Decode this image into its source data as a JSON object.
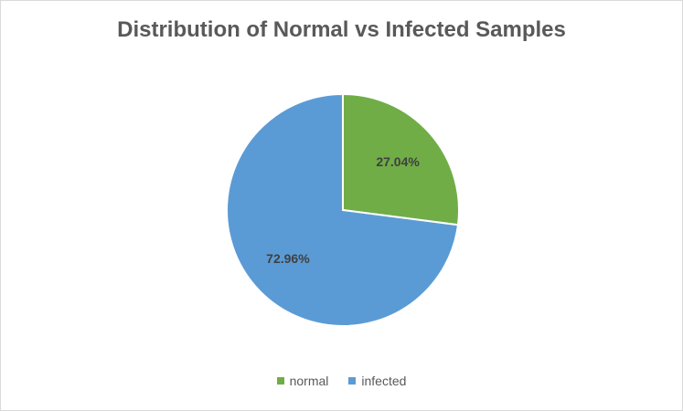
{
  "chart_data": {
    "type": "pie",
    "title": "Distribution of Normal vs Infected Samples",
    "categories": [
      "normal",
      "infected"
    ],
    "values": [
      27.04,
      72.96
    ],
    "data_labels": [
      "27.04%",
      "72.96%"
    ],
    "colors": [
      "#70ad47",
      "#5b9bd5"
    ],
    "legend_placement": "bottom"
  }
}
